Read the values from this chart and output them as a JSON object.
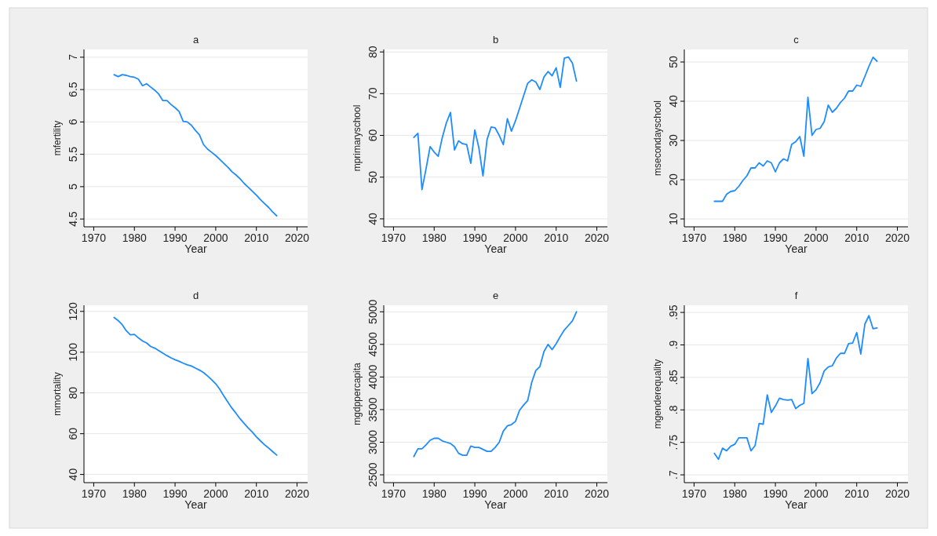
{
  "chart_data": [
    {
      "type": "line",
      "title": "a",
      "xlabel": "Year",
      "ylabel": "mfertility",
      "xlim": [
        1967.6,
        2022.6
      ],
      "xticks": [
        1970,
        1980,
        1990,
        2000,
        2010,
        2020
      ],
      "ylim": [
        4.38,
        7.12
      ],
      "yticks": [
        4.5,
        5,
        5.5,
        6,
        6.5,
        7
      ],
      "grid": "y",
      "series": [
        {
          "color": "#1e8cff",
          "x": [
            1975,
            1976,
            1977,
            1978,
            1979,
            1980,
            1981,
            1982,
            1983,
            1984,
            1985,
            1986,
            1987,
            1988,
            1989,
            1990,
            1991,
            1992,
            1993,
            1994,
            1995,
            1996,
            1997,
            1998,
            1999,
            2000,
            2001,
            2002,
            2003,
            2004,
            2005,
            2006,
            2007,
            2008,
            2009,
            2010,
            2011,
            2012,
            2013,
            2014,
            2015
          ],
          "values": [
            6.73,
            6.7,
            6.73,
            6.72,
            6.7,
            6.69,
            6.66,
            6.56,
            6.59,
            6.54,
            6.49,
            6.43,
            6.33,
            6.33,
            6.27,
            6.22,
            6.16,
            6.01,
            6.0,
            5.95,
            5.87,
            5.8,
            5.65,
            5.58,
            5.53,
            5.48,
            5.42,
            5.36,
            5.3,
            5.23,
            5.18,
            5.12,
            5.05,
            4.99,
            4.93,
            4.87,
            4.8,
            4.74,
            4.68,
            4.61,
            4.55
          ]
        }
      ]
    },
    {
      "type": "line",
      "title": "b",
      "xlabel": "Year",
      "ylabel": "mprimaryschool",
      "xlim": [
        1967.6,
        2022.6
      ],
      "xticks": [
        1970,
        1980,
        1990,
        2000,
        2010,
        2020
      ],
      "ylim": [
        38.1,
        80.6
      ],
      "yticks": [
        40,
        50,
        60,
        70,
        80
      ],
      "grid": "y",
      "series": [
        {
          "color": "#1e8cff",
          "x": [
            1975,
            1976,
            1977,
            1978,
            1979,
            1980,
            1981,
            1982,
            1983,
            1984,
            1985,
            1986,
            1987,
            1988,
            1989,
            1990,
            1991,
            1992,
            1993,
            1994,
            1995,
            1996,
            1997,
            1998,
            1999,
            2000,
            2001,
            2002,
            2003,
            2004,
            2005,
            2006,
            2007,
            2008,
            2009,
            2010,
            2011,
            2012,
            2013,
            2014,
            2015
          ],
          "values": [
            59.5,
            60.5,
            47,
            52,
            57.3,
            56,
            55,
            59.5,
            63,
            65.5,
            56.5,
            58.7,
            58,
            57.8,
            53.3,
            61.3,
            57,
            50.3,
            59,
            62,
            61.8,
            60,
            57.8,
            64,
            61,
            63.5,
            66.5,
            69.5,
            72.5,
            73.3,
            72.8,
            71,
            74,
            75.3,
            74.3,
            76.2,
            71.5,
            78.5,
            78.8,
            77.3,
            73
          ]
        }
      ]
    },
    {
      "type": "line",
      "title": "c",
      "xlabel": "Year",
      "ylabel": "msecondayschool",
      "xlim": [
        1967.6,
        2022.6
      ],
      "xticks": [
        1970,
        1980,
        1990,
        2000,
        2010,
        2020
      ],
      "ylim": [
        8,
        53.2
      ],
      "yticks": [
        10,
        20,
        30,
        40,
        50
      ],
      "grid": "y",
      "series": [
        {
          "color": "#1e8cff",
          "x": [
            1975,
            1976,
            1977,
            1978,
            1979,
            1980,
            1981,
            1982,
            1983,
            1984,
            1985,
            1986,
            1987,
            1988,
            1989,
            1990,
            1991,
            1992,
            1993,
            1994,
            1995,
            1996,
            1997,
            1998,
            1999,
            2000,
            2001,
            2002,
            2003,
            2004,
            2005,
            2006,
            2007,
            2008,
            2009,
            2010,
            2011,
            2012,
            2013,
            2014,
            2015
          ],
          "values": [
            14.5,
            14.5,
            14.5,
            16.3,
            17,
            17.2,
            18.3,
            19.8,
            21,
            23,
            23,
            24.3,
            23.5,
            24.8,
            24.3,
            22,
            24.3,
            25.3,
            24.8,
            29,
            29.7,
            31,
            26,
            41,
            31.3,
            32.8,
            33.1,
            34.8,
            39,
            37.2,
            38.2,
            39.7,
            40.8,
            42.6,
            42.6,
            44.1,
            43.8,
            46.3,
            48.9,
            51.2,
            50.2
          ]
        }
      ]
    },
    {
      "type": "line",
      "title": "d",
      "xlabel": "Year",
      "ylabel": "mmortality",
      "xlim": [
        1967.6,
        2022.6
      ],
      "xticks": [
        1970,
        1980,
        1990,
        2000,
        2010,
        2020
      ],
      "ylim": [
        36,
        123
      ],
      "yticks": [
        40,
        60,
        80,
        100,
        120
      ],
      "grid": "y",
      "series": [
        {
          "color": "#1e8cff",
          "x": [
            1975,
            1976,
            1977,
            1978,
            1979,
            1980,
            1981,
            1982,
            1983,
            1984,
            1985,
            1986,
            1987,
            1988,
            1989,
            1990,
            1991,
            1992,
            1993,
            1994,
            1995,
            1996,
            1997,
            1998,
            1999,
            2000,
            2001,
            2002,
            2003,
            2004,
            2005,
            2006,
            2007,
            2008,
            2009,
            2010,
            2011,
            2012,
            2013,
            2014,
            2015
          ],
          "values": [
            117,
            115.5,
            113.5,
            110.5,
            108.5,
            108.7,
            107,
            105.5,
            104.5,
            102.8,
            102,
            100.8,
            99.5,
            98.3,
            97.2,
            96.3,
            95.5,
            94.6,
            93.8,
            93.2,
            92.2,
            91.2,
            90,
            88.3,
            86.5,
            84.5,
            81.8,
            78.5,
            75.5,
            72.5,
            70,
            67.3,
            65,
            62.8,
            60.8,
            58.5,
            56.5,
            54.6,
            53,
            51.2,
            49.5
          ]
        }
      ]
    },
    {
      "type": "line",
      "title": "e",
      "xlabel": "Year",
      "ylabel": "mgdppercapita",
      "xlim": [
        1967.6,
        2022.6
      ],
      "xticks": [
        1970,
        1980,
        1990,
        2000,
        2010,
        2020
      ],
      "ylim": [
        2380,
        5100
      ],
      "yticks": [
        2500,
        3000,
        3500,
        4000,
        4500,
        5000
      ],
      "grid": "y",
      "series": [
        {
          "color": "#1e8cff",
          "x": [
            1975,
            1976,
            1977,
            1978,
            1979,
            1980,
            1981,
            1982,
            1983,
            1984,
            1985,
            1986,
            1987,
            1988,
            1989,
            1990,
            1991,
            1992,
            1993,
            1994,
            1995,
            1996,
            1997,
            1998,
            1999,
            2000,
            2001,
            2002,
            2003,
            2004,
            2005,
            2006,
            2007,
            2008,
            2009,
            2010,
            2011,
            2012,
            2013,
            2014,
            2015
          ],
          "values": [
            2780,
            2900,
            2900,
            2960,
            3030,
            3060,
            3060,
            3020,
            3000,
            2980,
            2930,
            2830,
            2800,
            2800,
            2940,
            2920,
            2920,
            2890,
            2860,
            2860,
            2920,
            3000,
            3170,
            3250,
            3270,
            3320,
            3490,
            3570,
            3640,
            3920,
            4100,
            4160,
            4390,
            4500,
            4420,
            4510,
            4620,
            4720,
            4790,
            4860,
            5000
          ]
        }
      ]
    },
    {
      "type": "line",
      "title": "f",
      "xlabel": "Year",
      "ylabel": "mgenderequality",
      "xlim": [
        1967.6,
        2022.6
      ],
      "xticks": [
        1970,
        1980,
        1990,
        2000,
        2010,
        2020
      ],
      "ylim": [
        0.688,
        0.961
      ],
      "yticks": [
        {
          "value": 0.7,
          "label": ".7"
        },
        {
          "value": 0.75,
          "label": ".75"
        },
        {
          "value": 0.8,
          "label": ".8"
        },
        {
          "value": 0.85,
          "label": ".85"
        },
        {
          "value": 0.9,
          "label": ".9"
        },
        {
          "value": 0.95,
          "label": ".95"
        }
      ],
      "grid": "y",
      "series": [
        {
          "color": "#1e8cff",
          "x": [
            1975,
            1976,
            1977,
            1978,
            1979,
            1980,
            1981,
            1982,
            1983,
            1984,
            1985,
            1986,
            1987,
            1988,
            1989,
            1990,
            1991,
            1992,
            1993,
            1994,
            1995,
            1996,
            1997,
            1998,
            1999,
            2000,
            2001,
            2002,
            2003,
            2004,
            2005,
            2006,
            2007,
            2008,
            2009,
            2010,
            2011,
            2012,
            2013,
            2014,
            2015
          ],
          "values": [
            0.733,
            0.724,
            0.741,
            0.737,
            0.744,
            0.747,
            0.757,
            0.757,
            0.757,
            0.737,
            0.745,
            0.779,
            0.778,
            0.823,
            0.796,
            0.806,
            0.818,
            0.816,
            0.815,
            0.816,
            0.802,
            0.807,
            0.81,
            0.879,
            0.825,
            0.831,
            0.842,
            0.86,
            0.866,
            0.868,
            0.88,
            0.887,
            0.887,
            0.902,
            0.903,
            0.919,
            0.886,
            0.932,
            0.945,
            0.925,
            0.926
          ]
        }
      ]
    }
  ]
}
